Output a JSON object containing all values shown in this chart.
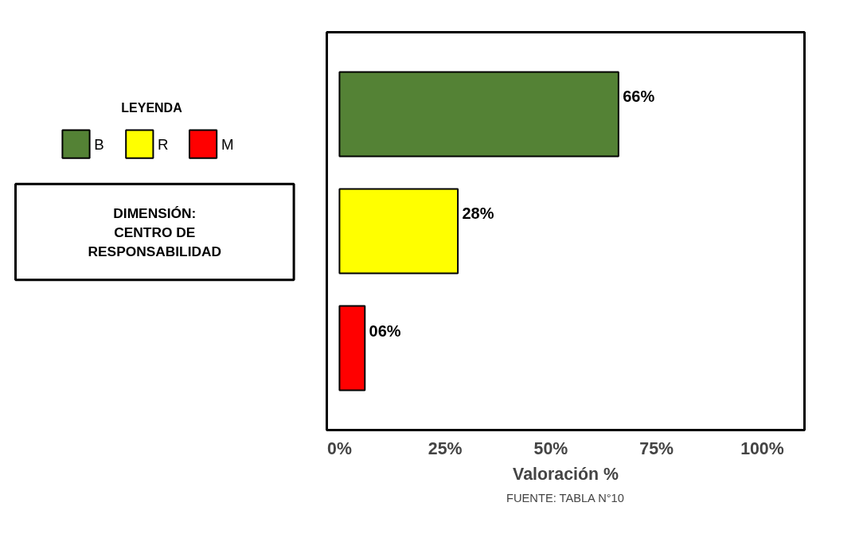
{
  "chart_data": {
    "type": "bar",
    "orientation": "horizontal",
    "categories": [
      null,
      null,
      null
    ],
    "stacked": true,
    "series": [
      {
        "name": "B",
        "color": "#548235",
        "values": [
          66,
          null,
          null
        ],
        "value_labels": [
          "66%",
          null,
          null
        ]
      },
      {
        "name": "R",
        "color": "#ffff00",
        "values": [
          null,
          28,
          null
        ],
        "value_labels": [
          null,
          "28%",
          null
        ]
      },
      {
        "name": "M",
        "color": "#ff0000",
        "values": [
          null,
          null,
          6
        ],
        "value_labels": [
          null,
          null,
          "06%"
        ]
      }
    ],
    "xlim": [
      -3,
      110
    ],
    "xticks": [
      {
        "value": 0,
        "label": "0%"
      },
      {
        "value": 25,
        "label": "25%"
      },
      {
        "value": 50,
        "label": "50%"
      },
      {
        "value": 75,
        "label": "75%"
      },
      {
        "value": 100,
        "label": "100%"
      }
    ],
    "xlabel": "Valoración %",
    "legend_title": "LEYENDA",
    "legend": "left",
    "grid": false,
    "tick_labels": "x",
    "annotations": [
      "DIMENSIÓN:\nCENTRO DE\nRESPONSABILIDAD",
      "FUENTE: TABLA N°10"
    ]
  }
}
